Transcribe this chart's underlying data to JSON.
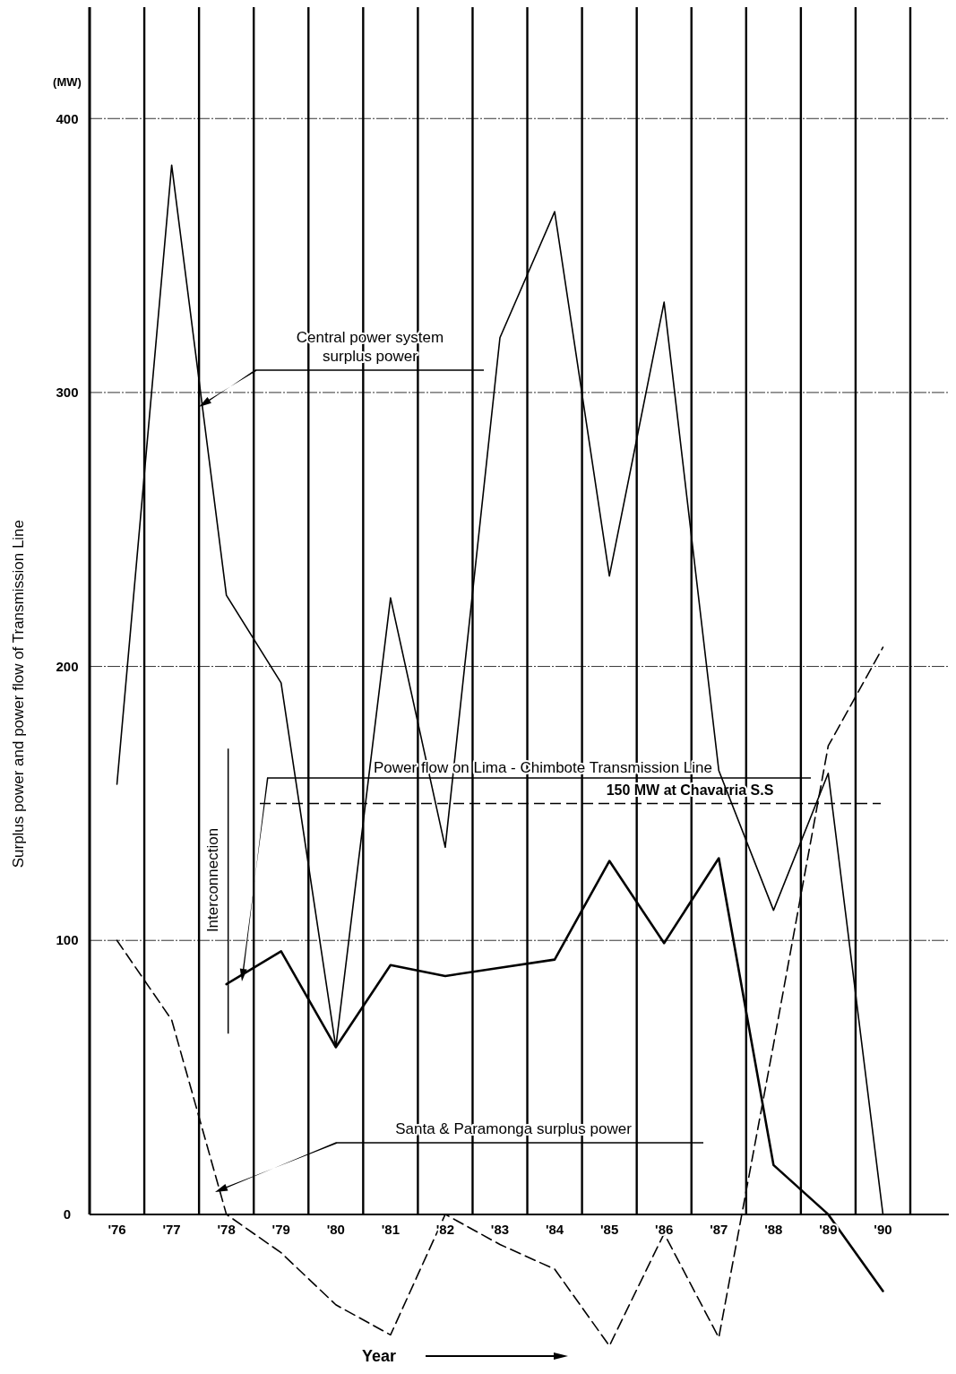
{
  "chart_data": {
    "type": "line",
    "xlabel": "Year",
    "ylabel": "Surplus power and power flow of Transmission Line",
    "categories": [
      "'76",
      "'77",
      "'78",
      "'79",
      "'80",
      "'81",
      "'82",
      "'83",
      "'84",
      "'85",
      "'86",
      "'87",
      "'88",
      "'89",
      "'90"
    ],
    "ylim": [
      -55,
      440
    ],
    "yticks": [
      0,
      100,
      200,
      300,
      400
    ],
    "grid": true,
    "legend": false,
    "series": [
      {
        "color": "#000000",
        "line_style": "solid",
        "values": [
          157,
          383,
          226,
          194,
          61,
          225,
          134,
          320,
          366,
          233,
          333,
          162,
          111,
          161,
          0
        ]
      },
      {
        "color": "#000000",
        "line_style": "solid",
        "values": [
          null,
          null,
          84,
          96,
          61,
          91,
          87,
          90,
          93,
          129,
          99,
          130,
          18,
          0,
          -28
        ]
      },
      {
        "color": "#000000",
        "line_style": "dashed",
        "values": [
          100,
          71,
          0,
          -14,
          -33,
          -44,
          0,
          -11,
          -20,
          -48,
          -7,
          -45,
          62,
          171,
          207
        ]
      }
    ],
    "ref_lines": [
      {
        "axis": "y",
        "value": 150,
        "label": "150 MW at Chavarria S.S",
        "line_style": "dashed"
      }
    ],
    "annotations": [
      "(MW)",
      "Interconnection",
      "Central power system surplus power",
      "Power flow on Lima - Chimbote Transmission Line",
      "Santa & Paramonga surplus power"
    ]
  }
}
